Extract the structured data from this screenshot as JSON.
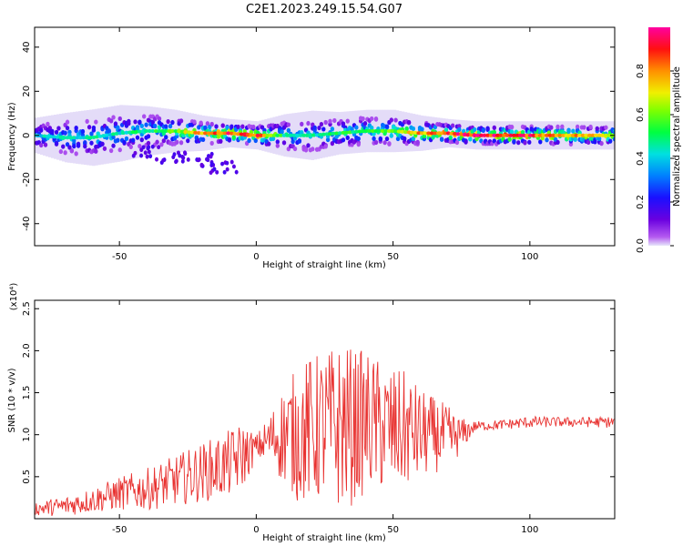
{
  "title": "C2E1.2023.249.15.54.G07",
  "chart_data": [
    {
      "type": "heatmap",
      "xlabel": "Height of straight line (km)",
      "ylabel": "Frequency (Hz)",
      "xlim": [
        -81,
        131
      ],
      "ylim": [
        -50,
        49
      ],
      "xticks": [
        -50,
        0,
        50,
        100
      ],
      "yticks": [
        40,
        20,
        0,
        -20,
        -40
      ],
      "colorbar": {
        "label": "Normalized spectral amplitude",
        "range": [
          0.0,
          1.0
        ],
        "ticks": [
          "0.0",
          "0.2",
          "0.4",
          "0.6",
          "0.8"
        ],
        "tick_values": [
          0.0,
          0.2,
          0.4,
          0.6,
          0.8
        ]
      },
      "ridge": [
        {
          "x": -81,
          "freq": 0,
          "width": 5,
          "peak": 0.4
        },
        {
          "x": -70,
          "freq": -1,
          "width": 7,
          "peak": 0.45
        },
        {
          "x": -60,
          "freq": -1,
          "width": 8,
          "peak": 0.45
        },
        {
          "x": -50,
          "freq": 1,
          "width": 8,
          "peak": 0.45
        },
        {
          "x": -40,
          "freq": 2,
          "width": 7,
          "peak": 0.5
        },
        {
          "x": -30,
          "freq": 2,
          "width": 6,
          "peak": 0.6
        },
        {
          "x": -20,
          "freq": 1,
          "width": 5,
          "peak": 0.8
        },
        {
          "x": -10,
          "freq": 1,
          "width": 4,
          "peak": 0.9
        },
        {
          "x": 0,
          "freq": 0,
          "width": 4,
          "peak": 0.9
        },
        {
          "x": 10,
          "freq": 0,
          "width": 6,
          "peak": 0.5
        },
        {
          "x": 20,
          "freq": 0,
          "width": 7,
          "peak": 0.45
        },
        {
          "x": 30,
          "freq": 1,
          "width": 6,
          "peak": 0.5
        },
        {
          "x": 40,
          "freq": 2,
          "width": 6,
          "peak": 0.55
        },
        {
          "x": 50,
          "freq": 2,
          "width": 6,
          "peak": 0.6
        },
        {
          "x": 60,
          "freq": 1,
          "width": 5,
          "peak": 0.8
        },
        {
          "x": 70,
          "freq": 1,
          "width": 4,
          "peak": 0.9
        },
        {
          "x": 80,
          "freq": 0,
          "width": 4,
          "peak": 0.95
        },
        {
          "x": 100,
          "freq": 0,
          "width": 4,
          "peak": 0.9
        },
        {
          "x": 131,
          "freq": 0,
          "width": 4,
          "peak": 0.7
        }
      ],
      "scatter_tail": [
        {
          "x": -40,
          "freq": -8
        },
        {
          "x": -30,
          "freq": -10
        },
        {
          "x": -20,
          "freq": -11
        },
        {
          "x": -12,
          "freq": -15
        }
      ]
    },
    {
      "type": "line",
      "xlabel": "Height of straight line (km)",
      "ylabel": "SNR (10 * v/v)",
      "y_multiplier": "(x10⁴)",
      "xlim": [
        -81,
        131
      ],
      "ylim": [
        0.0,
        2.6
      ],
      "xticks": [
        -50,
        0,
        50,
        100
      ],
      "yticks": [
        0.5,
        1.0,
        1.5,
        2.0,
        2.5
      ],
      "series": [
        {
          "color": "#e8312f",
          "x": [
            -81,
            -70,
            -60,
            -50,
            -40,
            -30,
            -20,
            -10,
            -5,
            0,
            5,
            10,
            15,
            20,
            25,
            30,
            35,
            40,
            45,
            50,
            55,
            60,
            65,
            70,
            75,
            80,
            90,
            100,
            110,
            120,
            131
          ],
          "center": [
            0.12,
            0.15,
            0.22,
            0.3,
            0.35,
            0.45,
            0.55,
            0.65,
            0.75,
            0.85,
            0.95,
            1.0,
            1.0,
            1.05,
            1.1,
            1.1,
            1.1,
            1.15,
            1.1,
            1.05,
            1.05,
            1.0,
            1.0,
            0.95,
            1.0,
            1.1,
            1.12,
            1.15,
            1.15,
            1.15,
            1.15
          ],
          "amplitude": [
            0.08,
            0.12,
            0.15,
            0.2,
            0.25,
            0.3,
            0.35,
            0.4,
            0.4,
            0.15,
            0.3,
            0.6,
            0.8,
            0.9,
            0.9,
            1.0,
            0.95,
            0.85,
            0.8,
            0.75,
            0.7,
            0.55,
            0.45,
            0.4,
            0.2,
            0.06,
            0.06,
            0.07,
            0.06,
            0.06,
            0.07
          ]
        }
      ]
    }
  ]
}
